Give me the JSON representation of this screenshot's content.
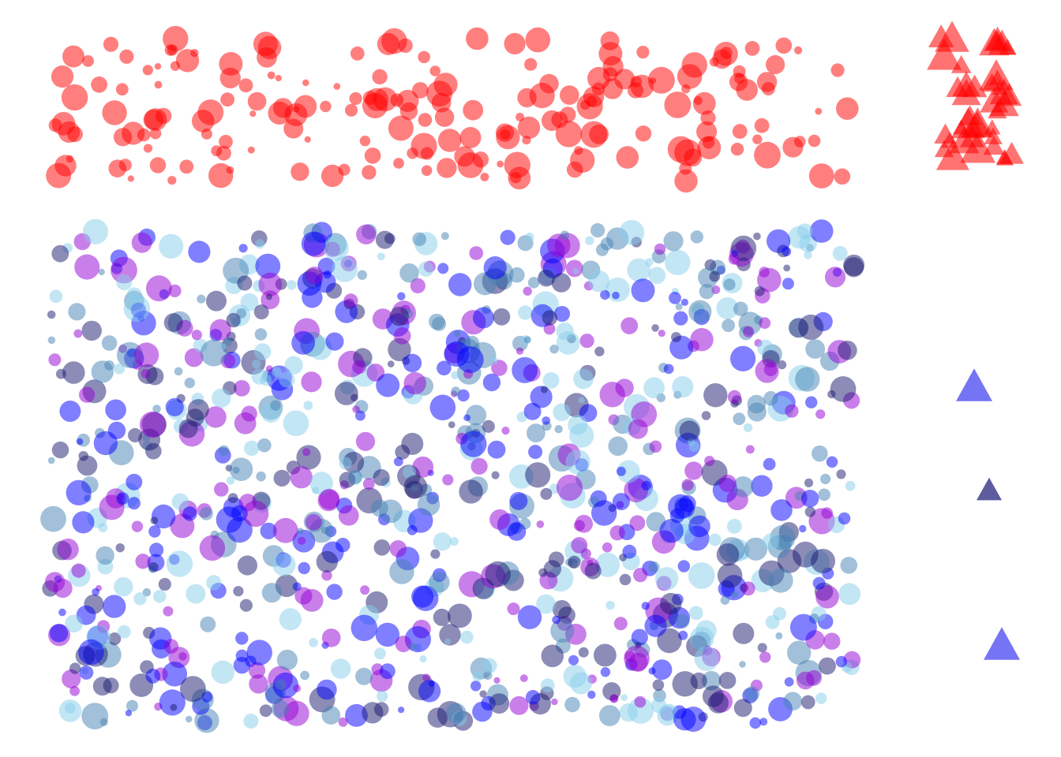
{
  "palette": {
    "red": "#ff0000",
    "blue": "#0000ff",
    "navy": "#191970",
    "steel": "#4682b4",
    "light_blue": "#87ceeb",
    "purple": "#9400d3",
    "triangle_blue": "#3f3ff0",
    "triangle_navy": "#1e1e78"
  },
  "regions": {
    "red_band": {
      "shape": "circle",
      "color": "red",
      "count": 200,
      "opacity": 0.5
    },
    "mixed_field": {
      "shape": "circle",
      "colors": [
        "blue",
        "navy",
        "steel",
        "light_blue",
        "purple"
      ],
      "count": 1000,
      "opacity": 0.5
    },
    "red_triangle_cluster": {
      "shape": "triangle",
      "color": "red",
      "count": 40,
      "opacity": 0.55
    },
    "blue_triangles": [
      {
        "shape": "triangle",
        "color": "triangle_blue"
      },
      {
        "shape": "triangle",
        "color": "triangle_navy"
      },
      {
        "shape": "triangle",
        "color": "triangle_blue"
      }
    ]
  }
}
